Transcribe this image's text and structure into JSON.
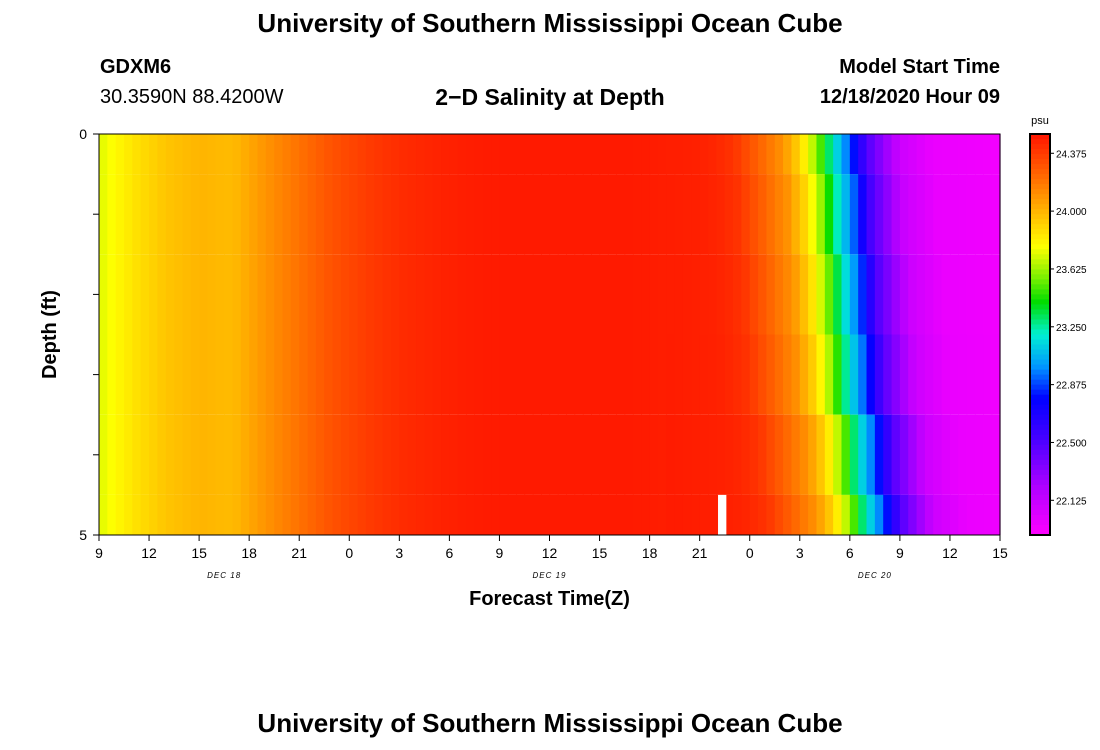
{
  "header": {
    "title": "University of Southern Mississippi Ocean Cube",
    "station_id": "GDXM6",
    "station_coords": "30.3590N 88.4200W",
    "plot_title": "2−D Salinity at Depth",
    "start_label": "Model Start Time",
    "start_time": "12/18/2020 Hour 09"
  },
  "footer": {
    "title": "University of Southern Mississippi Ocean Cube"
  },
  "chart_data": {
    "type": "heatmap",
    "title": "2−D Salinity at Depth",
    "xlabel": "Forecast Time(Z)",
    "ylabel": "Depth (ft)",
    "x_tick_labels": [
      "9",
      "12",
      "15",
      "18",
      "21",
      "0",
      "3",
      "6",
      "9",
      "12",
      "15",
      "18",
      "21",
      "0",
      "3",
      "6",
      "9",
      "12",
      "15"
    ],
    "x_range_hours": [
      0,
      54
    ],
    "date_labels": [
      {
        "label": "DEC 18",
        "hour": 7.5
      },
      {
        "label": "DEC 19",
        "hour": 27
      },
      {
        "label": "DEC 20",
        "hour": 46.5
      }
    ],
    "y_tick_labels": [
      "0",
      "5"
    ],
    "y_range": [
      0,
      5
    ],
    "colorbar": {
      "unit": "psu",
      "min": 21.9,
      "max": 24.5,
      "tick_values": [
        24.375,
        24.0,
        23.625,
        23.25,
        22.875,
        22.5,
        22.125
      ],
      "tick_labels": [
        "24.375",
        "24.000",
        "23.625",
        "23.250",
        "22.875",
        "22.500",
        "22.125"
      ]
    },
    "time_profile": {
      "hours": [
        0,
        2,
        4,
        6,
        8,
        10,
        12,
        14,
        16,
        18,
        20,
        22,
        24,
        26,
        28,
        30,
        32,
        34,
        36,
        37,
        38,
        39,
        40,
        41,
        42,
        43,
        44,
        45,
        46,
        47,
        48,
        50,
        54
      ],
      "salinity": [
        23.72,
        23.85,
        23.95,
        24.0,
        23.98,
        24.1,
        24.2,
        24.3,
        24.37,
        24.42,
        24.45,
        24.47,
        24.48,
        24.48,
        24.48,
        24.48,
        24.48,
        24.47,
        24.46,
        24.44,
        24.4,
        24.3,
        24.2,
        24.1,
        23.9,
        23.6,
        23.2,
        22.9,
        22.5,
        22.3,
        22.1,
        21.98,
        21.95
      ]
    },
    "layers": [
      {
        "depth_range": [
          0,
          0.5
        ],
        "front_shift_hours": 0
      },
      {
        "depth_range": [
          0.5,
          1.5
        ],
        "front_shift_hours": 0.3
      },
      {
        "depth_range": [
          1.5,
          2.5
        ],
        "front_shift_hours": 0.6
      },
      {
        "depth_range": [
          2.5,
          3.5
        ],
        "front_shift_hours": 0.9
      },
      {
        "depth_range": [
          3.5,
          4.5
        ],
        "front_shift_hours": 1.5
      },
      {
        "depth_range": [
          4.5,
          5.0
        ],
        "front_shift_hours": 2.0
      }
    ],
    "gap_marker": {
      "hour": 37.1,
      "width_hours": 0.5,
      "depth_range": [
        4.5,
        5.0
      ]
    }
  }
}
